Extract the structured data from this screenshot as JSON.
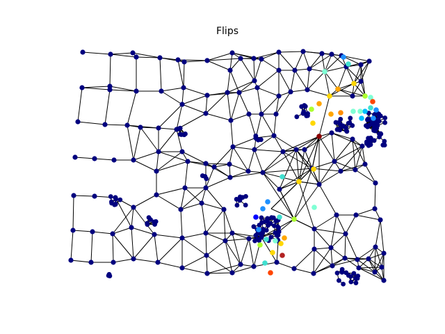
{
  "figure": {
    "title": "Flips"
  },
  "colors": {
    "background": "#ffffff",
    "edge": "#000000",
    "node_low": "#00007f",
    "colormap": "jet"
  },
  "diagram_data": {
    "type": "network-graph",
    "node_color_scale": [
      "#00007f",
      "#0000ff",
      "#007fff",
      "#00ffff",
      "#7fff7f",
      "#ffff00",
      "#ff7f00",
      "#ff0000",
      "#7f0000"
    ],
    "highlighted_node_colors": [
      "#00bfff",
      "#1e90ff",
      "#40e0d0",
      "#7fffd4",
      "#adff2f",
      "#ffd700",
      "#ffa500",
      "#ff8c00",
      "#ff4500",
      "#b22222",
      "#8b0000"
    ]
  }
}
